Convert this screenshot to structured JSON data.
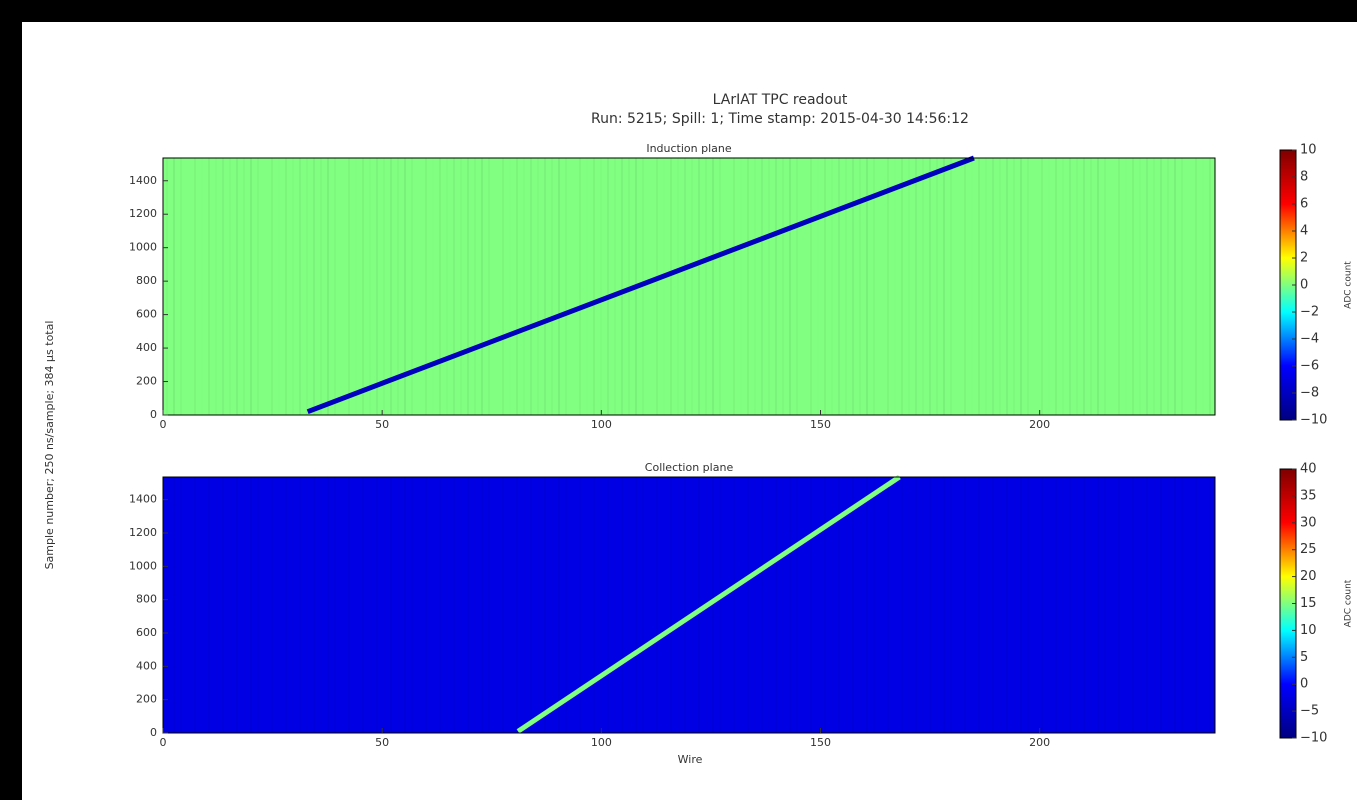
{
  "title": "LArIAT TPC readout",
  "subtitle": "Run: 5215; Spill: 1; Time stamp: 2015-04-30 14:56:12",
  "ylabel": "Sample number; 250 ns/sample; 384 μs total",
  "xlabel": "Wire",
  "colormap": [
    "#00007f",
    "#0000ff",
    "#00ffff",
    "#ffff00",
    "#ff0000",
    "#7f0000"
  ],
  "chart_data": [
    {
      "type": "heatmap",
      "title": "Induction plane",
      "xlim": [
        0,
        240
      ],
      "ylim": [
        0,
        1536
      ],
      "xticks": [
        0,
        50,
        100,
        150,
        200
      ],
      "yticks": [
        0,
        200,
        400,
        600,
        800,
        1000,
        1200,
        1400
      ],
      "background_value": 0,
      "track": {
        "x": [
          33,
          185
        ],
        "y": [
          20,
          1536
        ],
        "value": -8
      },
      "clim": [
        -10,
        10
      ],
      "colorbar_label": "ADC count",
      "cticks": [
        {
          "value": -10,
          "label": "−10"
        },
        {
          "value": -8,
          "label": "−8"
        },
        {
          "value": -6,
          "label": "−6"
        },
        {
          "value": -4,
          "label": "−4"
        },
        {
          "value": -2,
          "label": "−2"
        },
        0,
        2,
        4,
        6,
        8,
        10
      ]
    },
    {
      "type": "heatmap",
      "title": "Collection plane",
      "xlim": [
        0,
        240
      ],
      "ylim": [
        0,
        1536
      ],
      "xticks": [
        0,
        50,
        100,
        150,
        200
      ],
      "yticks": [
        0,
        200,
        400,
        600,
        800,
        1000,
        1200,
        1400
      ],
      "background_value": -2,
      "track": {
        "x": [
          81,
          168
        ],
        "y": [
          10,
          1536
        ],
        "value": 15
      },
      "clim": [
        -10,
        40
      ],
      "colorbar_label": "ADC count",
      "cticks": [
        {
          "value": -10,
          "label": "−10"
        },
        {
          "value": -5,
          "label": "−5"
        },
        0,
        5,
        10,
        15,
        20,
        25,
        30,
        35,
        40
      ]
    }
  ]
}
